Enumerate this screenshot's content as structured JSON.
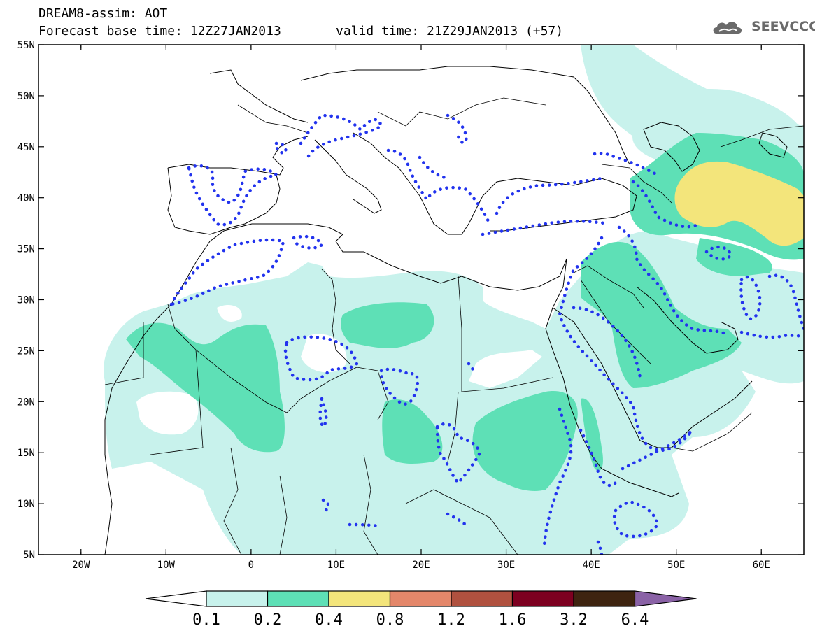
{
  "header": {
    "title": "DREAM8-assim: AOT",
    "base_time": "Forecast base time: 12Z27JAN2013",
    "valid_time": "valid time: 21Z29JAN2013 (+57)",
    "logo_text": "SEEVCCC"
  },
  "map": {
    "lon_range": [
      -25,
      65
    ],
    "lat_range": [
      5,
      55
    ],
    "lat_ticks": [
      "55N",
      "50N",
      "45N",
      "40N",
      "35N",
      "30N",
      "25N",
      "20N",
      "15N",
      "10N",
      "5N"
    ],
    "lon_ticks": [
      "20W",
      "10W",
      "0",
      "10E",
      "20E",
      "30E",
      "40E",
      "50E",
      "60E"
    ],
    "dotted_contour_color": "#2233ee"
  },
  "colorbar": {
    "levels": [
      "0.1",
      "0.2",
      "0.4",
      "0.8",
      "1.2",
      "1.6",
      "3.2",
      "6.4"
    ],
    "colors": [
      "#c8f2ec",
      "#5ee0b6",
      "#f3e57b",
      "#e4876a",
      "#b0513f",
      "#7d0020",
      "#3e2410",
      "#8a62a6"
    ],
    "under_color": "#ffffff"
  }
}
